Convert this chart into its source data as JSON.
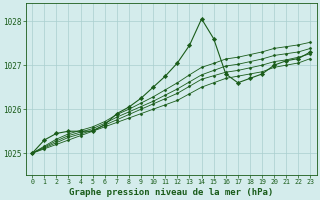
{
  "title": "Graphe pression niveau de la mer (hPa)",
  "title_fontsize": 6.5,
  "bg_color": "#d4ecec",
  "grid_color": "#aacfcf",
  "line_color": "#1a5c1a",
  "marker_color": "#1a5c1a",
  "axis_label_color": "#1a5c1a",
  "tick_label_color": "#1a5c1a",
  "ylim": [
    1024.5,
    1028.4
  ],
  "xlim": [
    -0.5,
    23.5
  ],
  "yticks": [
    1025,
    1026,
    1027,
    1028
  ],
  "xticks": [
    0,
    1,
    2,
    3,
    4,
    5,
    6,
    7,
    8,
    9,
    10,
    11,
    12,
    13,
    14,
    15,
    16,
    17,
    18,
    19,
    20,
    21,
    22,
    23
  ],
  "main_series": [
    1025.0,
    1025.3,
    1025.45,
    1025.5,
    1025.5,
    1025.5,
    1025.65,
    1025.9,
    1026.05,
    1026.25,
    1026.5,
    1026.75,
    1027.05,
    1027.45,
    1028.05,
    1027.6,
    1026.8,
    1026.6,
    1026.7,
    1026.8,
    1027.0,
    1027.1,
    1027.15,
    1027.3
  ],
  "trend_series": [
    [
      1025.0,
      1025.1,
      1025.2,
      1025.3,
      1025.4,
      1025.5,
      1025.6,
      1025.7,
      1025.8,
      1025.9,
      1026.0,
      1026.1,
      1026.2,
      1026.35,
      1026.5,
      1026.6,
      1026.7,
      1026.75,
      1026.8,
      1026.85,
      1026.95,
      1027.0,
      1027.05,
      1027.15
    ],
    [
      1025.0,
      1025.12,
      1025.24,
      1025.36,
      1025.44,
      1025.52,
      1025.64,
      1025.76,
      1025.88,
      1026.0,
      1026.12,
      1026.24,
      1026.36,
      1026.52,
      1026.68,
      1026.76,
      1026.84,
      1026.88,
      1026.94,
      1027.0,
      1027.08,
      1027.12,
      1027.18,
      1027.26
    ],
    [
      1025.0,
      1025.14,
      1025.28,
      1025.4,
      1025.48,
      1025.56,
      1025.68,
      1025.82,
      1025.94,
      1026.06,
      1026.18,
      1026.32,
      1026.46,
      1026.62,
      1026.78,
      1026.88,
      1026.98,
      1027.02,
      1027.08,
      1027.14,
      1027.22,
      1027.26,
      1027.3,
      1027.38
    ],
    [
      1025.0,
      1025.16,
      1025.32,
      1025.44,
      1025.52,
      1025.6,
      1025.72,
      1025.88,
      1026.0,
      1026.14,
      1026.28,
      1026.44,
      1026.6,
      1026.78,
      1026.95,
      1027.04,
      1027.14,
      1027.18,
      1027.24,
      1027.3,
      1027.38,
      1027.42,
      1027.46,
      1027.52
    ]
  ]
}
